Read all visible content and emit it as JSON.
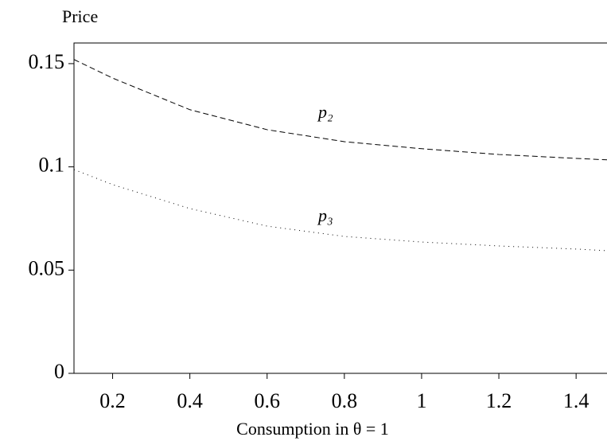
{
  "chart_data": {
    "type": "line",
    "y_label": "Price",
    "x_label": "Consumption in θ = 1",
    "x": [
      0.1,
      0.2,
      0.4,
      0.6,
      0.8,
      1.0,
      1.2,
      1.4,
      1.48
    ],
    "series": [
      {
        "name": "p₂",
        "color": "#000000",
        "style": "dashed",
        "values": [
          0.152,
          0.143,
          0.1277,
          0.118,
          0.1122,
          0.1088,
          0.106,
          0.1041,
          0.1034
        ]
      },
      {
        "name": "p₃",
        "color": "#000000",
        "style": "dotted",
        "values": [
          0.0987,
          0.0914,
          0.0798,
          0.0713,
          0.0663,
          0.0636,
          0.0617,
          0.0602,
          0.0594
        ]
      }
    ],
    "xlim": [
      0.1,
      1.48
    ],
    "ylim": [
      0,
      0.16
    ],
    "xticks": [
      0.2,
      0.4,
      0.6,
      0.8,
      1,
      1.2,
      1.4
    ],
    "yticks": [
      0,
      0.05,
      0.1,
      0.15
    ],
    "grid": false
  }
}
